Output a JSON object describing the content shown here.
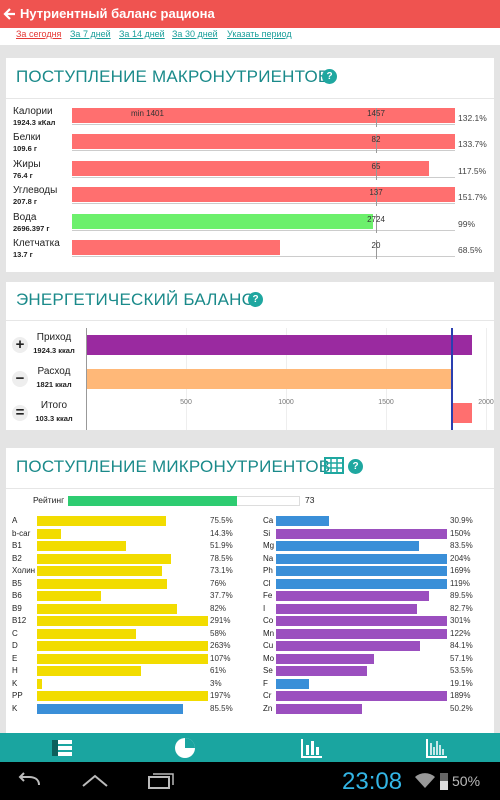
{
  "header": {
    "title": "Нутриентный баланс рациона"
  },
  "tabs": [
    "За сегодня",
    "За 7 дней",
    "За 14 дней",
    "За 30 дней",
    "Указать период"
  ],
  "macros": {
    "title": "ПОСТУПЛЕНИЕ МАКРОНУТРИЕНТОВ",
    "rows": [
      {
        "name": "Калории",
        "amount": "1924.3 кКал",
        "norm": 1457,
        "min_label": "min 1401",
        "percent": 132.1,
        "percent_label": "132.1%",
        "color": "#ff6f6f"
      },
      {
        "name": "Белки",
        "amount": "109.6 г",
        "norm": 82,
        "percent": 133.7,
        "percent_label": "133.7%",
        "color": "#ff6f6f"
      },
      {
        "name": "Жиры",
        "amount": "76.4 г",
        "norm": 65,
        "percent": 117.5,
        "percent_label": "117.5%",
        "color": "#ff6f6f"
      },
      {
        "name": "Углеводы",
        "amount": "207.8 г",
        "norm": 137,
        "percent": 151.7,
        "percent_label": "151.7%",
        "color": "#ff6f6f"
      },
      {
        "name": "Вода",
        "amount": "2696.397 г",
        "norm": 2724,
        "percent": 99,
        "percent_label": "99%",
        "color": "#6cf06c"
      },
      {
        "name": "Клетчатка",
        "amount": "13.7 г",
        "norm": 20,
        "percent": 68.5,
        "percent_label": "68.5%",
        "color": "#ff6f6f"
      }
    ]
  },
  "energy": {
    "title": "ЭНЕРГЕТИЧЕСКИЙ БАЛАНС",
    "ticks": [
      500,
      1000,
      1500,
      2000
    ],
    "rows": [
      {
        "sign": "+",
        "name": "Приход",
        "value": 1924.3,
        "label": "1924.3 ккал",
        "color": "#9a2aa0"
      },
      {
        "sign": "−",
        "name": "Расход",
        "value": 1821,
        "label": "1821 ккал",
        "color": "#ffb878"
      },
      {
        "sign": "=",
        "name": "Итого",
        "value": 103.3,
        "label": "103.3 ккал",
        "color": "#ff6f6f"
      }
    ]
  },
  "micro": {
    "title": "ПОСТУПЛЕНИЕ МИКРОНУТРИЕНТОВ",
    "rating": {
      "label": "Рейтинг",
      "value": 73
    },
    "left": [
      {
        "name": "A",
        "value": 75.5,
        "label": "75.5%",
        "color": "#f2dc00"
      },
      {
        "name": "b-car",
        "value": 14.3,
        "label": "14.3%",
        "color": "#f2dc00"
      },
      {
        "name": "B1",
        "value": 51.9,
        "label": "51.9%",
        "color": "#f2dc00"
      },
      {
        "name": "B2",
        "value": 78.5,
        "label": "78.5%",
        "color": "#f2dc00"
      },
      {
        "name": "Холин",
        "value": 73.1,
        "label": "73.1%",
        "color": "#f2dc00"
      },
      {
        "name": "B5",
        "value": 76,
        "label": "76%",
        "color": "#f2dc00"
      },
      {
        "name": "B6",
        "value": 37.7,
        "label": "37.7%",
        "color": "#f2dc00"
      },
      {
        "name": "B9",
        "value": 82,
        "label": "82%",
        "color": "#f2dc00"
      },
      {
        "name": "B12",
        "value": 291,
        "label": "291%",
        "color": "#f2dc00"
      },
      {
        "name": "C",
        "value": 58,
        "label": "58%",
        "color": "#f2dc00"
      },
      {
        "name": "D",
        "value": 263,
        "label": "263%",
        "color": "#f2dc00"
      },
      {
        "name": "E",
        "value": 107,
        "label": "107%",
        "color": "#f2dc00"
      },
      {
        "name": "H",
        "value": 61,
        "label": "61%",
        "color": "#f2dc00"
      },
      {
        "name": "K",
        "value": 3,
        "label": "3%",
        "color": "#f2dc00"
      },
      {
        "name": "PP",
        "value": 197,
        "label": "197%",
        "color": "#f2dc00"
      },
      {
        "name": "K",
        "value": 85.5,
        "label": "85.5%",
        "color": "#3a8fd8"
      }
    ],
    "right": [
      {
        "name": "Ca",
        "value": 30.9,
        "label": "30.9%",
        "color": "#3a8fd8"
      },
      {
        "name": "Si",
        "value": 150,
        "label": "150%",
        "color": "#9b4fbf"
      },
      {
        "name": "Mg",
        "value": 83.5,
        "label": "83.5%",
        "color": "#3a8fd8"
      },
      {
        "name": "Na",
        "value": 204,
        "label": "204%",
        "color": "#3a8fd8"
      },
      {
        "name": "Ph",
        "value": 169,
        "label": "169%",
        "color": "#3a8fd8"
      },
      {
        "name": "Cl",
        "value": 119,
        "label": "119%",
        "color": "#3a8fd8"
      },
      {
        "name": "Fe",
        "value": 89.5,
        "label": "89.5%",
        "color": "#9b4fbf"
      },
      {
        "name": "I",
        "value": 82.7,
        "label": "82.7%",
        "color": "#9b4fbf"
      },
      {
        "name": "Co",
        "value": 301,
        "label": "301%",
        "color": "#9b4fbf"
      },
      {
        "name": "Mn",
        "value": 122,
        "label": "122%",
        "color": "#9b4fbf"
      },
      {
        "name": "Cu",
        "value": 84.1,
        "label": "84.1%",
        "color": "#9b4fbf"
      },
      {
        "name": "Mo",
        "value": 57.1,
        "label": "57.1%",
        "color": "#9b4fbf"
      },
      {
        "name": "Se",
        "value": 53.5,
        "label": "53.5%",
        "color": "#9b4fbf"
      },
      {
        "name": "F",
        "value": 19.1,
        "label": "19.1%",
        "color": "#3a8fd8"
      },
      {
        "name": "Cr",
        "value": 189,
        "label": "189%",
        "color": "#9b4fbf"
      },
      {
        "name": "Zn",
        "value": 50.2,
        "label": "50.2%",
        "color": "#9b4fbf"
      }
    ]
  },
  "status": {
    "time": "23:08",
    "battery": "50%"
  }
}
